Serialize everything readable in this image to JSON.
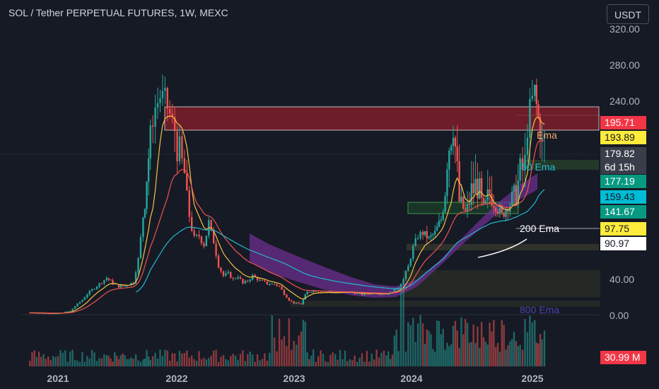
{
  "header": {
    "title": "SOL / Tether PERPETUAL FUTURES, 1W, MEXC",
    "currency_button": "USDT"
  },
  "colors": {
    "background": "#161a25",
    "up_candle": "#26a69a",
    "down_candle": "#ef5350",
    "ema_fast": "#f5c242",
    "ema_slow": "#ef5350",
    "ema_50": "#22b8cf",
    "ema_200": "#ffffff",
    "ema_800_band": "#6b2f8f",
    "supply_zone": "#8b1f2b",
    "demand_zone": "#2e7d32"
  },
  "chart_data": {
    "type": "candlestick",
    "symbol": "SOL / Tether PERPETUAL FUTURES",
    "timeframe": "1W",
    "exchange": "MEXC",
    "x_ticks": [
      "2021",
      "2022",
      "2023",
      "2024",
      "2025"
    ],
    "y_ticks": [
      "320.00",
      "280.00",
      "240.00",
      "40.00",
      "0.00"
    ],
    "y_scale": "percent (piecewise)",
    "annotations": {
      "ema_50": "50 Ema",
      "ema_200": "200 Ema",
      "ema_800": "800 Ema",
      "ema_short": "Ema"
    },
    "price_badges": [
      {
        "value": "195.71",
        "bg": "#f23645",
        "fg": "#ffffff"
      },
      {
        "value": "193.89",
        "bg": "#ffeb3b",
        "fg": "#131722"
      },
      {
        "value": "179.82",
        "sub": "6d 15h",
        "bg": "#3a3e4a",
        "fg": "#ffffff"
      },
      {
        "value": "177.19",
        "bg": "#089981",
        "fg": "#ffffff"
      },
      {
        "value": "159.43",
        "bg": "#00bcd4",
        "fg": "#131722"
      },
      {
        "value": "141.67",
        "bg": "#089981",
        "fg": "#ffffff"
      },
      {
        "value": "97.75",
        "bg": "#ffeb3b",
        "fg": "#131722"
      },
      {
        "value": "90.97",
        "bg": "#ffffff",
        "fg": "#131722"
      }
    ],
    "volume_badge": {
      "value": "30.99 M",
      "bg": "#f23645",
      "fg": "#ffffff"
    },
    "close_series": [
      [
        2020.75,
        2.4
      ],
      [
        2020.9,
        1.9
      ],
      [
        2021.0,
        1.7
      ],
      [
        2021.1,
        4
      ],
      [
        2021.2,
        14
      ],
      [
        2021.3,
        28
      ],
      [
        2021.4,
        42
      ],
      [
        2021.45,
        35
      ],
      [
        2021.5,
        30
      ],
      [
        2021.55,
        31
      ],
      [
        2021.62,
        36
      ],
      [
        2021.66,
        70
      ],
      [
        2021.7,
        140
      ],
      [
        2021.73,
        175
      ],
      [
        2021.76,
        195
      ],
      [
        2021.8,
        230
      ],
      [
        2021.84,
        245
      ],
      [
        2021.88,
        240
      ],
      [
        2021.92,
        220
      ],
      [
        2021.96,
        200
      ],
      [
        2022.0,
        185
      ],
      [
        2022.04,
        175
      ],
      [
        2022.08,
        140
      ],
      [
        2022.12,
        105
      ],
      [
        2022.16,
        110
      ],
      [
        2022.2,
        95
      ],
      [
        2022.24,
        130
      ],
      [
        2022.28,
        100
      ],
      [
        2022.32,
        60
      ],
      [
        2022.36,
        45
      ],
      [
        2022.4,
        48
      ],
      [
        2022.44,
        40
      ],
      [
        2022.48,
        45
      ],
      [
        2022.52,
        34
      ],
      [
        2022.56,
        38
      ],
      [
        2022.6,
        45
      ],
      [
        2022.66,
        38
      ],
      [
        2022.72,
        34
      ],
      [
        2022.78,
        33
      ],
      [
        2022.82,
        30
      ],
      [
        2022.86,
        20
      ],
      [
        2022.9,
        14
      ],
      [
        2022.94,
        11
      ],
      [
        2023.0,
        10
      ],
      [
        2023.05,
        22
      ],
      [
        2023.1,
        24
      ],
      [
        2023.2,
        22
      ],
      [
        2023.3,
        21
      ],
      [
        2023.4,
        22
      ],
      [
        2023.5,
        19
      ],
      [
        2023.6,
        21
      ],
      [
        2023.7,
        20
      ],
      [
        2023.75,
        22
      ],
      [
        2023.8,
        30
      ],
      [
        2023.84,
        40
      ],
      [
        2023.88,
        58
      ],
      [
        2023.92,
        90
      ],
      [
        2023.96,
        110
      ],
      [
        2024.0,
        115
      ],
      [
        2024.05,
        105
      ],
      [
        2024.1,
        115
      ],
      [
        2024.15,
        135
      ],
      [
        2024.2,
        185
      ],
      [
        2024.25,
        205
      ],
      [
        2024.3,
        160
      ],
      [
        2024.35,
        145
      ],
      [
        2024.4,
        165
      ],
      [
        2024.45,
        170
      ],
      [
        2024.5,
        150
      ],
      [
        2024.55,
        165
      ],
      [
        2024.6,
        155
      ],
      [
        2024.65,
        140
      ],
      [
        2024.7,
        155
      ],
      [
        2024.75,
        160
      ],
      [
        2024.8,
        175
      ],
      [
        2024.84,
        180
      ],
      [
        2024.88,
        230
      ],
      [
        2024.92,
        250
      ],
      [
        2024.95,
        215
      ],
      [
        2024.98,
        190
      ],
      [
        2025.02,
        195
      ],
      [
        2025.05,
        180
      ]
    ]
  }
}
